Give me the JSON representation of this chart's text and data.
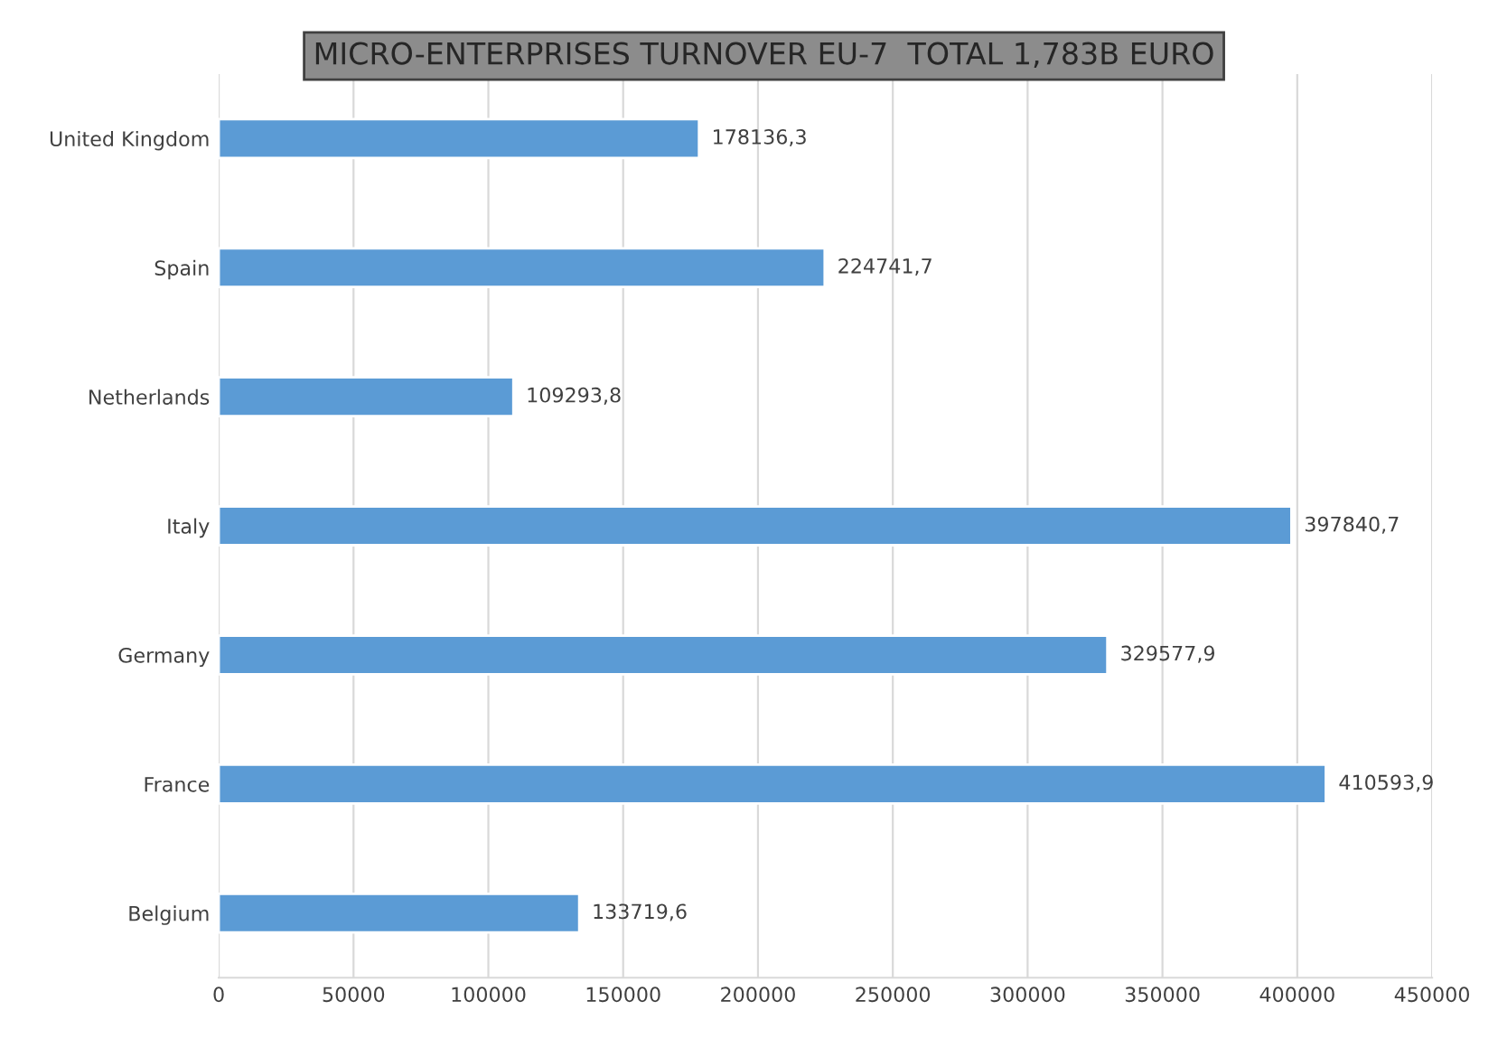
{
  "chart_data": {
    "type": "bar",
    "orientation": "horizontal",
    "title": "MICRO-ENTERPRISES TURNOVER EU-7  TOTAL 1,783B EURO",
    "categories": [
      "United Kingdom",
      "Spain",
      "Netherlands",
      "Italy",
      "Germany",
      "France",
      "Belgium"
    ],
    "values": [
      178136.3,
      224741.7,
      109293.8,
      397840.7,
      329577.9,
      410593.9,
      133719.6
    ],
    "value_labels": [
      "178136,3",
      "224741,7",
      "109293,8",
      "397840,7",
      "329577,9",
      "410593,9",
      "133719,6"
    ],
    "color": "#5b9bd5",
    "xlim": [
      0,
      450000
    ],
    "xticks": [
      0,
      50000,
      100000,
      150000,
      200000,
      250000,
      300000,
      350000,
      400000,
      450000
    ],
    "grid": "x"
  }
}
